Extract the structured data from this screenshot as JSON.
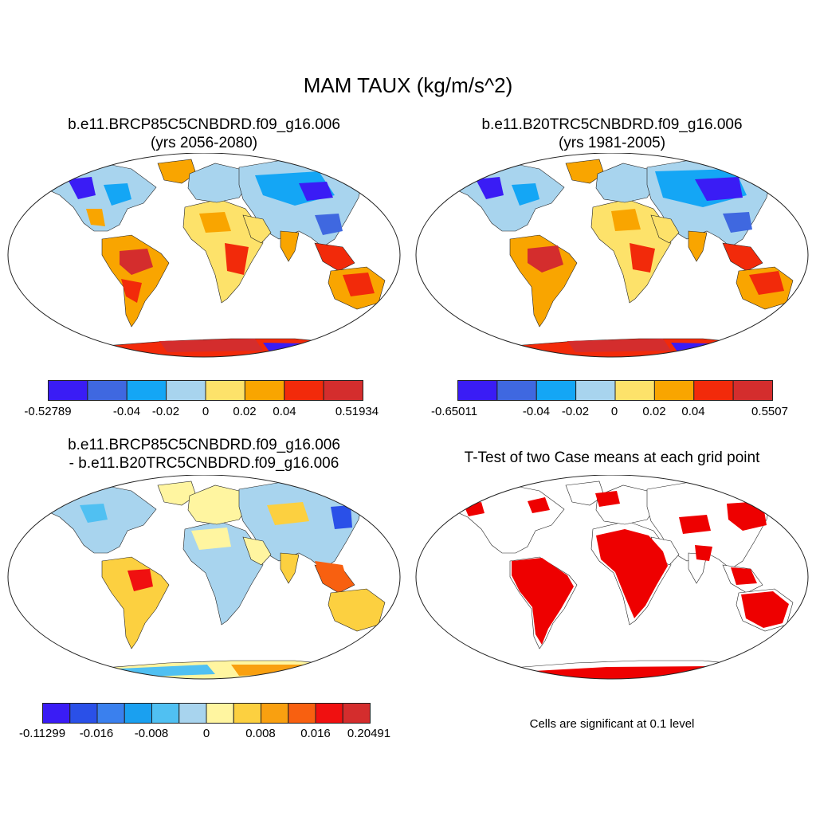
{
  "figure": {
    "title": "MAM TAUX (kg/m/s^2)"
  },
  "panels": [
    {
      "line1": "b.e11.BRCP85C5CNBDRD.f09_g16.006",
      "line2": "(yrs 2056-2080)",
      "colorbar": {
        "colors": [
          "#3a1cf5",
          "#3f68e0",
          "#14a6f5",
          "#a8d4ee",
          "#fde26a",
          "#f9a500",
          "#f22a0a",
          "#d42d2d"
        ],
        "labels": [
          "-0.52789",
          "-0.04",
          "-0.02",
          "0",
          "0.02",
          "0.04",
          "0.51934"
        ]
      }
    },
    {
      "line1": "b.e11.B20TRC5CNBDRD.f09_g16.006",
      "line2": "(yrs 1981-2005)",
      "colorbar": {
        "colors": [
          "#3a1cf5",
          "#3f68e0",
          "#14a6f5",
          "#a8d4ee",
          "#fde26a",
          "#f9a500",
          "#f22a0a",
          "#d42d2d"
        ],
        "labels": [
          "-0.65011",
          "-0.04",
          "-0.02",
          "0",
          "0.02",
          "0.04",
          "0.5507"
        ]
      }
    },
    {
      "line1": "b.e11.BRCP85C5CNBDRD.f09_g16.006",
      "line2": "- b.e11.B20TRC5CNBDRD.f09_g16.006",
      "colorbar": {
        "colors": [
          "#3a1cf5",
          "#2a50e8",
          "#3a80ee",
          "#1aa0f0",
          "#50c0f2",
          "#a8d4ee",
          "#fff5a0",
          "#fcd040",
          "#f9a010",
          "#f86010",
          "#f01010",
          "#d42d2d"
        ],
        "labels": [
          "-0.11299",
          "-0.016",
          "-0.008",
          "0",
          "0.008",
          "0.016",
          "0.20491"
        ]
      }
    },
    {
      "line1": "T-Test of two Case means at each grid point",
      "note": "Cells are significant at 0.1 level"
    }
  ]
}
